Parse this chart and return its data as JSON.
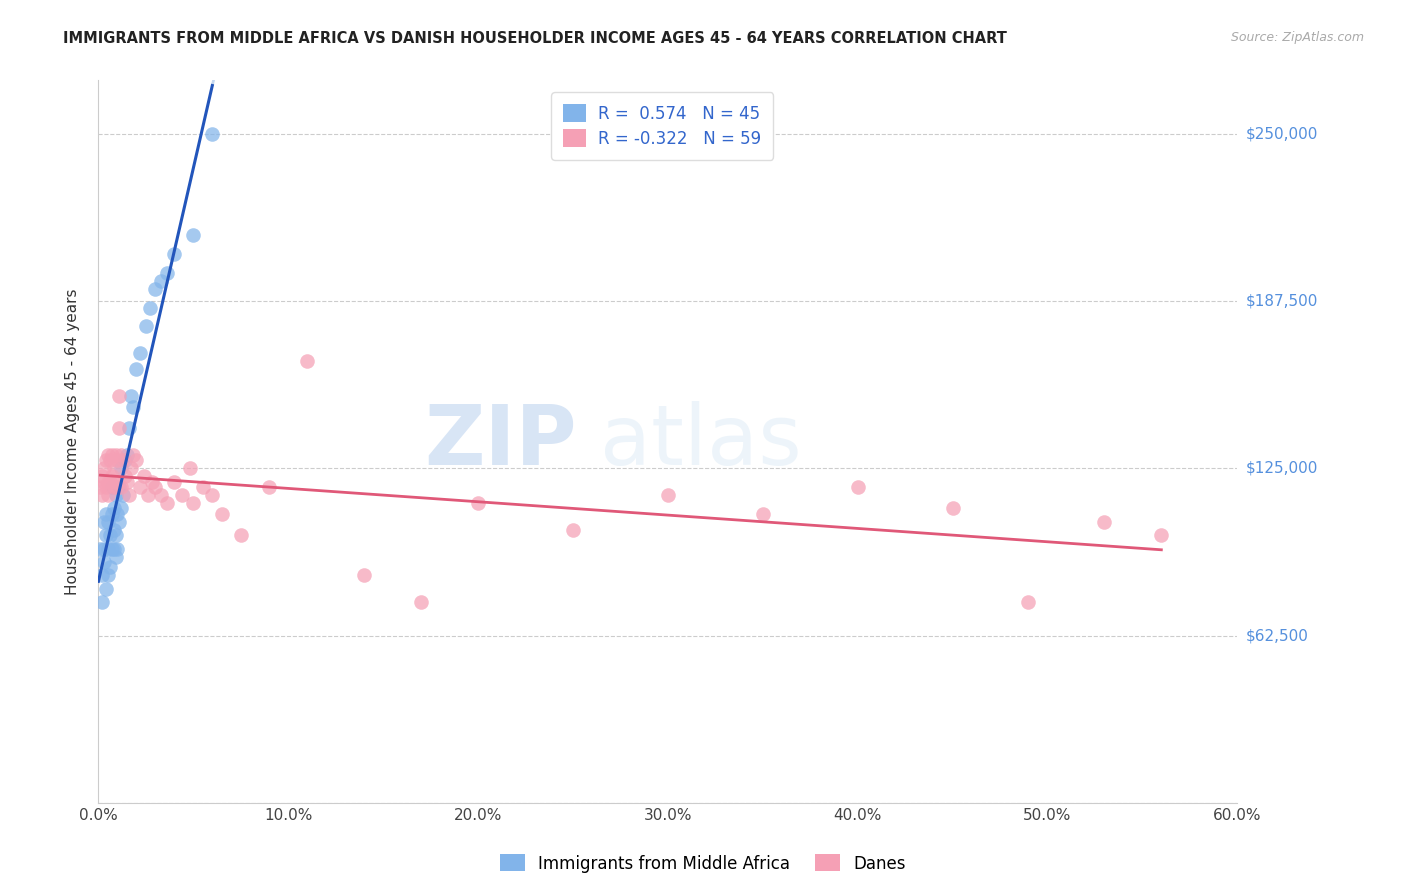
{
  "title": "IMMIGRANTS FROM MIDDLE AFRICA VS DANISH HOUSEHOLDER INCOME AGES 45 - 64 YEARS CORRELATION CHART",
  "source": "Source: ZipAtlas.com",
  "ylabel": "Householder Income Ages 45 - 64 years",
  "yticks": [
    0,
    62500,
    125000,
    187500,
    250000
  ],
  "ytick_labels": [
    "",
    "$62,500",
    "$125,000",
    "$187,500",
    "$250,000"
  ],
  "xlim": [
    0.0,
    0.6
  ],
  "ylim": [
    0,
    270000
  ],
  "legend_blue_r": "0.574",
  "legend_blue_n": "45",
  "legend_pink_r": "-0.322",
  "legend_pink_n": "59",
  "blue_color": "#82b4ea",
  "pink_color": "#f5a0b5",
  "blue_line_color": "#2255bb",
  "pink_line_color": "#e05878",
  "dashed_line_color": "#c5d8f0",
  "watermark_zip": "ZIP",
  "watermark_atlas": "atlas",
  "blue_scatter_x": [
    0.001,
    0.002,
    0.002,
    0.003,
    0.003,
    0.003,
    0.004,
    0.004,
    0.004,
    0.005,
    0.005,
    0.005,
    0.006,
    0.006,
    0.007,
    0.007,
    0.007,
    0.008,
    0.008,
    0.008,
    0.009,
    0.009,
    0.009,
    0.01,
    0.01,
    0.011,
    0.011,
    0.012,
    0.012,
    0.013,
    0.014,
    0.015,
    0.016,
    0.017,
    0.018,
    0.02,
    0.022,
    0.025,
    0.027,
    0.03,
    0.033,
    0.036,
    0.04,
    0.05,
    0.06
  ],
  "blue_scatter_y": [
    95000,
    75000,
    85000,
    90000,
    95000,
    105000,
    80000,
    100000,
    108000,
    85000,
    95000,
    105000,
    88000,
    100000,
    95000,
    108000,
    118000,
    95000,
    102000,
    110000,
    92000,
    100000,
    115000,
    95000,
    108000,
    105000,
    118000,
    110000,
    125000,
    115000,
    128000,
    130000,
    140000,
    152000,
    148000,
    162000,
    168000,
    178000,
    185000,
    192000,
    195000,
    198000,
    205000,
    212000,
    250000
  ],
  "pink_scatter_x": [
    0.001,
    0.002,
    0.002,
    0.003,
    0.003,
    0.004,
    0.004,
    0.005,
    0.005,
    0.005,
    0.006,
    0.006,
    0.007,
    0.007,
    0.008,
    0.008,
    0.009,
    0.009,
    0.01,
    0.01,
    0.011,
    0.011,
    0.012,
    0.012,
    0.013,
    0.014,
    0.015,
    0.016,
    0.017,
    0.018,
    0.02,
    0.022,
    0.024,
    0.026,
    0.028,
    0.03,
    0.033,
    0.036,
    0.04,
    0.044,
    0.048,
    0.05,
    0.055,
    0.06,
    0.065,
    0.075,
    0.09,
    0.11,
    0.14,
    0.17,
    0.2,
    0.25,
    0.3,
    0.35,
    0.4,
    0.45,
    0.49,
    0.53,
    0.56
  ],
  "pink_scatter_y": [
    118000,
    115000,
    122000,
    120000,
    125000,
    118000,
    128000,
    115000,
    120000,
    130000,
    120000,
    128000,
    122000,
    130000,
    118000,
    125000,
    120000,
    130000,
    118000,
    128000,
    152000,
    140000,
    130000,
    118000,
    128000,
    122000,
    120000,
    115000,
    125000,
    130000,
    128000,
    118000,
    122000,
    115000,
    120000,
    118000,
    115000,
    112000,
    120000,
    115000,
    125000,
    112000,
    118000,
    115000,
    108000,
    100000,
    118000,
    165000,
    85000,
    75000,
    112000,
    102000,
    115000,
    108000,
    118000,
    110000,
    75000,
    105000,
    100000
  ]
}
